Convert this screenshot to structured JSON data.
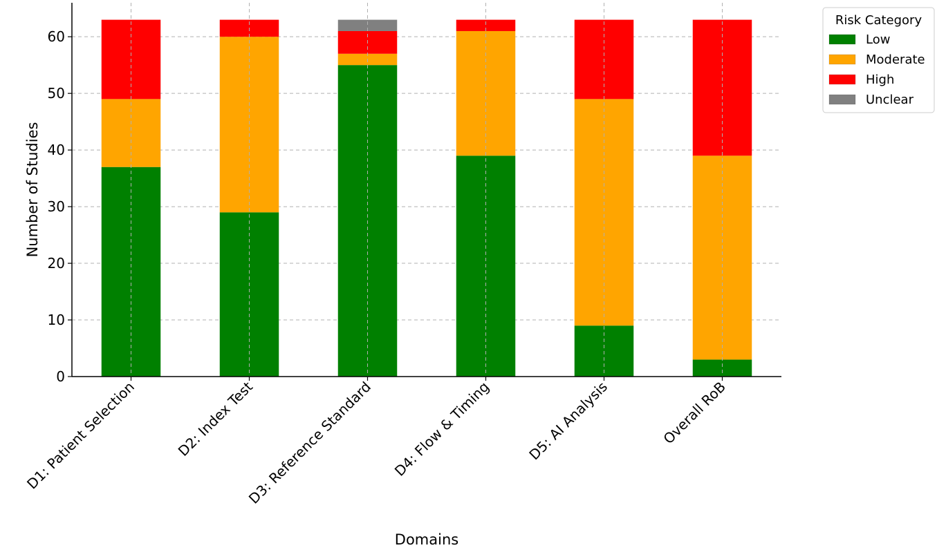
{
  "chart_data": {
    "type": "bar",
    "stacked": true,
    "title": "",
    "xlabel": "Domains",
    "ylabel": "Number of Studies",
    "categories": [
      "D1: Patient Selection",
      "D2: Index Test",
      "D3: Reference Standard",
      "D4: Flow & Timing",
      "D5: AI Analysis",
      "Overall RoB"
    ],
    "series": [
      {
        "name": "Low",
        "color": "#008000",
        "values": [
          37,
          29,
          55,
          39,
          9,
          3
        ]
      },
      {
        "name": "Moderate",
        "color": "#FFA500",
        "values": [
          12,
          31,
          2,
          22,
          40,
          36
        ]
      },
      {
        "name": "High",
        "color": "#FF0000",
        "values": [
          14,
          3,
          4,
          2,
          14,
          24
        ]
      },
      {
        "name": "Unclear",
        "color": "#808080",
        "values": [
          0,
          0,
          2,
          0,
          0,
          0
        ]
      }
    ],
    "ylim": [
      0,
      66
    ],
    "yticks": [
      0,
      10,
      20,
      30,
      40,
      50,
      60
    ],
    "grid": true,
    "legend": {
      "title": "Risk Category",
      "position": "upper-right-outside"
    }
  }
}
